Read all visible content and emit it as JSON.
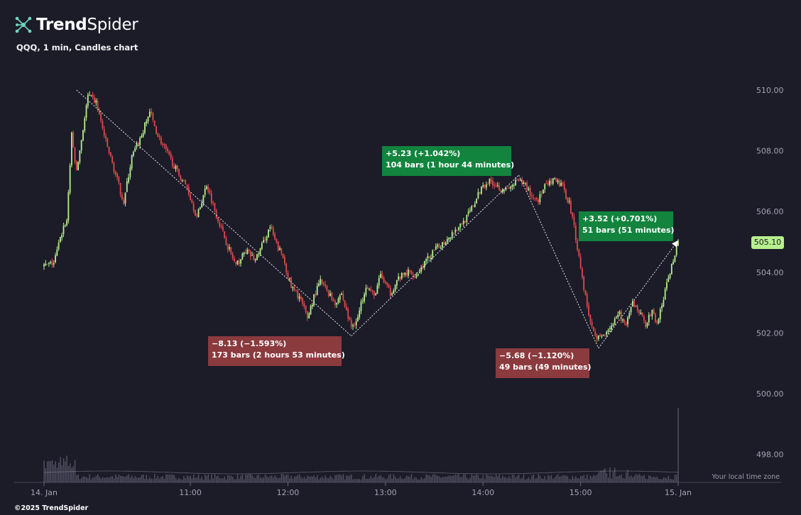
{
  "brand": {
    "name_bold": "Trend",
    "name_light": "Spider",
    "icon": "spider-network-icon"
  },
  "subtitle": "QQQ, 1 min, Candles chart",
  "footer": "©2025 TrendSpider",
  "timezone_label": "Your local time zone",
  "last_price_tag": "505.10",
  "colors": {
    "background": "#1c1b28",
    "up": "#b6f08f",
    "down": "#e04a4a",
    "annotation_up": "#12843e",
    "annotation_down": "#8b3a3e",
    "volume": "#5d5d6e"
  },
  "annotations": [
    {
      "line1": "−8.13 (−1.593%)",
      "line2": "173 bars (2 hours 53 minutes)",
      "color": "red"
    },
    {
      "line1": "+5.23 (+1.042%)",
      "line2": "104 bars (1 hour 44 minutes)",
      "color": "green"
    },
    {
      "line1": "−5.68 (−1.120%)",
      "line2": "49 bars (49 minutes)",
      "color": "red"
    },
    {
      "line1": "+3.52 (+0.701%)",
      "line2": "51 bars (51 minutes)",
      "color": "green"
    }
  ],
  "chart_data": {
    "type": "candlestick",
    "symbol": "QQQ",
    "interval": "1 min",
    "y_ticks": [
      498.0,
      500.0,
      502.0,
      504.0,
      506.0,
      508.0,
      510.0
    ],
    "y_tick_labels": [
      "498.00",
      "500.00",
      "502.00",
      "504.00",
      "506.00",
      "508.00",
      "510.00"
    ],
    "x_tick_labels": [
      "14. Jan",
      "11:00",
      "12:00",
      "13:00",
      "14:00",
      "15:00",
      "15. Jan"
    ],
    "x_tick_times": [
      "09:30",
      "11:00",
      "12:00",
      "13:00",
      "14:00",
      "15:00",
      "16:00"
    ],
    "session": {
      "start": "09:30",
      "end": "16:00"
    },
    "close_path": [
      [
        "09:30",
        504.2
      ],
      [
        "09:36",
        504.3
      ],
      [
        "09:42",
        505.5
      ],
      [
        "09:44",
        505.7
      ],
      [
        "09:47",
        508.5
      ],
      [
        "09:50",
        507.3
      ],
      [
        "09:57",
        509.8
      ],
      [
        "10:02",
        509.6
      ],
      [
        "10:08",
        508.3
      ],
      [
        "10:13",
        507.4
      ],
      [
        "10:19",
        506.3
      ],
      [
        "10:24",
        507.8
      ],
      [
        "10:30",
        508.5
      ],
      [
        "10:35",
        509.3
      ],
      [
        "10:40",
        508.5
      ],
      [
        "10:45",
        508.0
      ],
      [
        "10:52",
        507.3
      ],
      [
        "10:58",
        506.8
      ],
      [
        "11:04",
        505.8
      ],
      [
        "11:10",
        506.9
      ],
      [
        "11:16",
        505.9
      ],
      [
        "11:22",
        505.0
      ],
      [
        "11:28",
        504.2
      ],
      [
        "11:34",
        504.7
      ],
      [
        "11:40",
        504.4
      ],
      [
        "11:45",
        505.0
      ],
      [
        "11:49",
        505.5
      ],
      [
        "11:53",
        504.9
      ],
      [
        "11:57",
        504.5
      ],
      [
        "12:02",
        503.5
      ],
      [
        "12:07",
        503.2
      ],
      [
        "12:12",
        502.5
      ],
      [
        "12:16",
        503.2
      ],
      [
        "12:20",
        503.7
      ],
      [
        "12:24",
        503.4
      ],
      [
        "12:29",
        503.0
      ],
      [
        "12:33",
        503.3
      ],
      [
        "12:36",
        502.7
      ],
      [
        "12:39",
        502.2
      ],
      [
        "12:43",
        502.5
      ],
      [
        "12:48",
        503.6
      ],
      [
        "12:53",
        503.2
      ],
      [
        "12:57",
        503.9
      ],
      [
        "13:03",
        503.3
      ],
      [
        "13:08",
        503.8
      ],
      [
        "13:14",
        504.0
      ],
      [
        "13:19",
        503.9
      ],
      [
        "13:24",
        504.3
      ],
      [
        "13:30",
        504.7
      ],
      [
        "13:36",
        505.0
      ],
      [
        "13:41",
        505.3
      ],
      [
        "13:45",
        505.5
      ],
      [
        "13:50",
        505.8
      ],
      [
        "13:55",
        506.3
      ],
      [
        "14:00",
        506.9
      ],
      [
        "14:05",
        507.0
      ],
      [
        "14:10",
        506.8
      ],
      [
        "14:15",
        506.7
      ],
      [
        "14:21",
        507.0
      ],
      [
        "14:26",
        506.9
      ],
      [
        "14:30",
        506.5
      ],
      [
        "14:34",
        506.4
      ],
      [
        "14:38",
        506.8
      ],
      [
        "14:43",
        507.0
      ],
      [
        "14:48",
        506.9
      ],
      [
        "14:53",
        506.3
      ],
      [
        "14:56",
        505.5
      ],
      [
        "14:59",
        504.5
      ],
      [
        "15:02",
        503.5
      ],
      [
        "15:05",
        502.6
      ],
      [
        "15:08",
        502.0
      ],
      [
        "15:12",
        501.8
      ],
      [
        "15:16",
        502.1
      ],
      [
        "15:20",
        502.3
      ],
      [
        "15:24",
        502.6
      ],
      [
        "15:28",
        502.2
      ],
      [
        "15:32",
        503.0
      ],
      [
        "15:36",
        502.7
      ],
      [
        "15:40",
        502.3
      ],
      [
        "15:44",
        502.7
      ],
      [
        "15:47",
        502.3
      ],
      [
        "15:50",
        502.9
      ],
      [
        "15:53",
        503.6
      ],
      [
        "15:56",
        504.2
      ],
      [
        "16:00",
        505.1
      ]
    ],
    "measure_lines": [
      {
        "from": [
          "09:50",
          510.0
        ],
        "to": [
          "12:39",
          501.9
        ]
      },
      {
        "from": [
          "12:39",
          501.9
        ],
        "to": [
          "14:22",
          507.2
        ]
      },
      {
        "from": [
          "14:22",
          507.2
        ],
        "to": [
          "15:11",
          501.5
        ]
      },
      {
        "from": [
          "15:11",
          501.5
        ],
        "to": [
          "16:00",
          505.05
        ]
      }
    ],
    "volume_spike_time": "16:00",
    "last_price": 505.1,
    "ylim": [
      496.8,
      511.2
    ]
  }
}
